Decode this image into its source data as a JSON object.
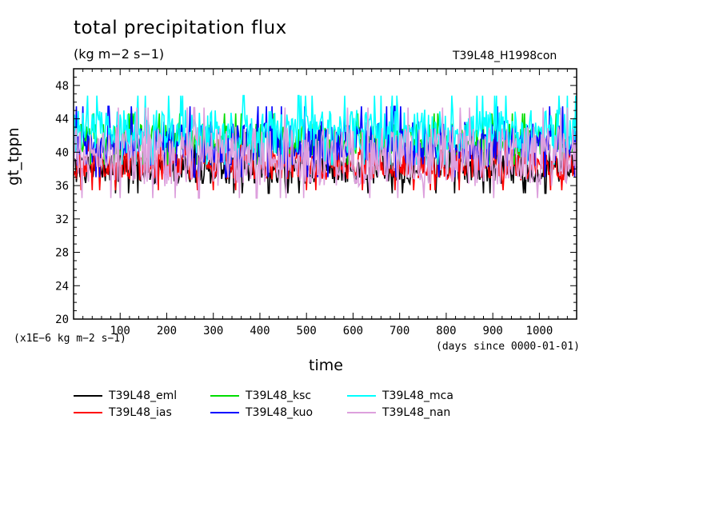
{
  "chart_data": {
    "type": "line",
    "title": "total precipitation flux",
    "units": "(kg m−2 s−1)",
    "run_label": "T39L48_H1998con",
    "xlabel": "time",
    "x_units": "(days since 0000-01-01)",
    "ylabel": "gt_tppn",
    "y_scale_note": "(x1E−6 kg m−2 s−1)",
    "xlim": [
      0,
      1080
    ],
    "ylim": [
      20,
      50
    ],
    "x_ticks": [
      100,
      200,
      300,
      400,
      500,
      600,
      700,
      800,
      900,
      1000
    ],
    "y_ticks": [
      20,
      24,
      28,
      32,
      36,
      40,
      44,
      48
    ],
    "grid": false,
    "legend_position": "bottom",
    "series": [
      {
        "name": "T39L48_eml",
        "color": "#000000",
        "mean": 38.0,
        "min": 35.0,
        "max": 41.5
      },
      {
        "name": "T39L48_ias",
        "color": "#ff0000",
        "mean": 38.5,
        "min": 35.2,
        "max": 42.0
      },
      {
        "name": "T39L48_ksc",
        "color": "#00dd00",
        "mean": 41.5,
        "min": 38.5,
        "max": 45.5
      },
      {
        "name": "T39L48_kuo",
        "color": "#0000ff",
        "mean": 41.0,
        "min": 37.0,
        "max": 47.0
      },
      {
        "name": "T39L48_mca",
        "color": "#00ffff",
        "mean": 42.5,
        "min": 38.5,
        "max": 48.0
      },
      {
        "name": "T39L48_nan",
        "color": "#dda0dd",
        "mean": 39.5,
        "min": 34.5,
        "max": 47.5
      }
    ]
  }
}
